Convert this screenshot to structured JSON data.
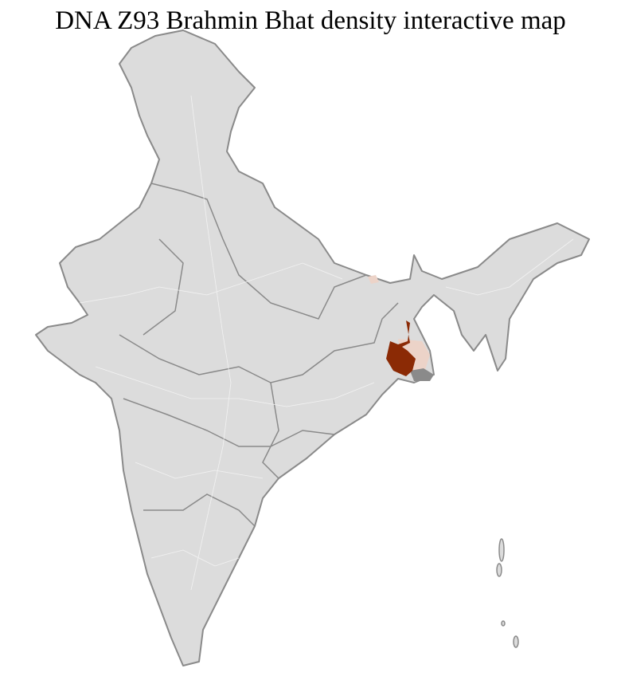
{
  "title": "DNA Z93 Brahmin Bhat density interactive map",
  "colors": {
    "base_fill": "#dcdcdc",
    "border": "#8a8a8a",
    "district_line": "#f5f5f5",
    "high_density": "#8b2a05",
    "low_density": "#ecd3c8"
  }
}
